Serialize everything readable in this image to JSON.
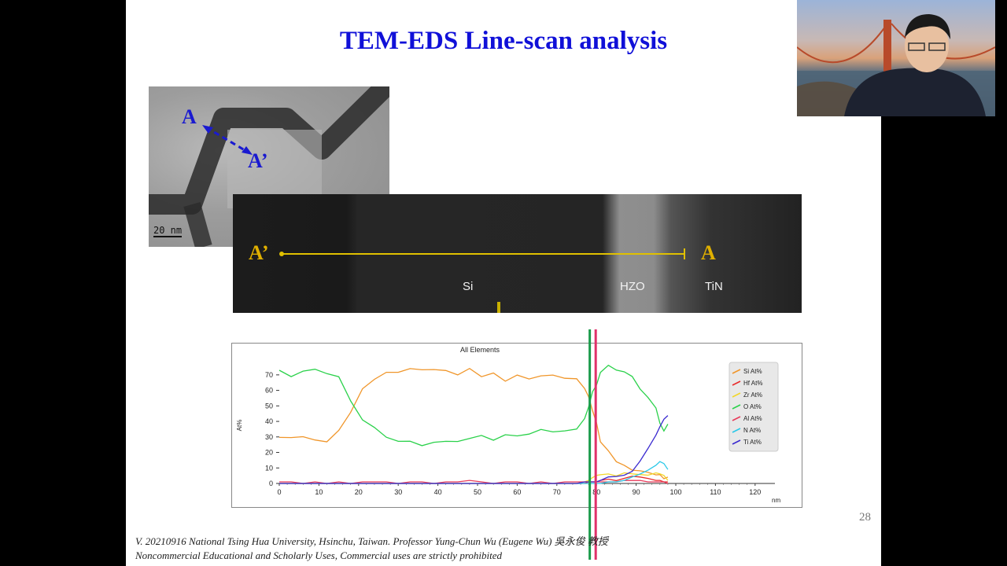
{
  "slide": {
    "title": "TEM-EDS Line-scan analysis",
    "page_number": "28",
    "footer_line1": "V. 20210916 National Tsing Hua University, Hsinchu, Taiwan. Professor Yung-Chun Wu (Eugene Wu) 吳永俊 教授",
    "footer_line2": "Noncommercial Educational and Scholarly Uses, Commercial uses are strictly prohibited"
  },
  "tem_image": {
    "point_a": "A",
    "point_a_prime": "A’",
    "scale_bar": "20 nm",
    "arrow_color": "#1a1ad0"
  },
  "stem_strip": {
    "point_a_prime": "A’",
    "point_a": "A",
    "layer_si": "Si",
    "layer_hzo": "HZO",
    "layer_tin": "TiN",
    "scan_line_color": "#e0c000"
  },
  "chart_data": {
    "type": "line",
    "title": "All Elements",
    "xlabel": "nm",
    "ylabel": "At%",
    "xlim": [
      0,
      125
    ],
    "ylim": [
      0,
      75
    ],
    "xticks": [
      0,
      10,
      20,
      30,
      40,
      50,
      60,
      70,
      80,
      90,
      100,
      110,
      120
    ],
    "yticks": [
      0,
      10,
      20,
      30,
      40,
      50,
      60,
      70
    ],
    "legend_position": "top-right",
    "grid": false,
    "vertical_markers": [
      {
        "x": 78.5,
        "color": "#1a9a4a"
      },
      {
        "x": 80,
        "color": "#e0306a"
      }
    ],
    "x": [
      0,
      3,
      6,
      9,
      12,
      15,
      18,
      21,
      24,
      27,
      30,
      33,
      36,
      39,
      42,
      45,
      48,
      51,
      54,
      57,
      60,
      63,
      66,
      69,
      72,
      75,
      77,
      78,
      79,
      80,
      81,
      83,
      85,
      87,
      89,
      91,
      93,
      95,
      96,
      97,
      98
    ],
    "series": [
      {
        "name": "Si At%",
        "color": "#f0962a",
        "values": [
          30,
          29,
          31,
          27,
          28,
          33,
          47,
          60,
          68,
          71,
          72,
          74,
          73,
          74,
          72,
          71,
          73,
          70,
          70,
          67,
          69,
          68,
          69,
          70,
          68,
          67,
          62,
          55,
          48,
          38,
          28,
          20,
          15,
          11,
          9,
          8,
          7,
          6,
          5,
          4,
          3
        ]
      },
      {
        "name": "Hf At%",
        "color": "#e82a2a",
        "values": [
          0,
          0,
          0,
          0,
          0,
          0,
          0,
          0,
          0,
          0,
          0,
          0,
          0,
          0,
          0,
          0,
          0,
          0,
          0,
          0,
          0,
          0,
          0,
          0,
          0,
          0,
          0,
          1,
          1,
          1,
          2,
          3,
          3,
          4,
          4,
          3,
          3,
          2,
          2,
          1,
          1
        ]
      },
      {
        "name": "Zr At%",
        "color": "#f2d62a",
        "values": [
          0,
          0,
          0,
          0,
          0,
          0,
          0,
          0,
          0,
          0,
          0,
          0,
          0,
          0,
          0,
          0,
          0,
          0,
          0,
          0,
          0,
          0,
          0,
          0,
          0,
          0,
          1,
          2,
          3,
          5,
          6,
          7,
          6,
          8,
          7,
          6,
          5,
          6,
          5,
          4,
          2
        ]
      },
      {
        "name": "O At%",
        "color": "#2ad14a",
        "values": [
          72,
          70,
          72,
          73,
          72,
          68,
          53,
          42,
          35,
          30,
          28,
          26,
          25,
          27,
          26,
          28,
          29,
          30,
          29,
          31,
          30,
          33,
          34,
          33,
          35,
          34,
          42,
          50,
          58,
          64,
          72,
          75,
          74,
          72,
          68,
          62,
          55,
          48,
          40,
          33,
          38
        ]
      },
      {
        "name": "Al At%",
        "color": "#e83a5a",
        "values": [
          1,
          1,
          0,
          1,
          0,
          1,
          0,
          1,
          1,
          1,
          0,
          1,
          1,
          0,
          1,
          1,
          2,
          1,
          0,
          1,
          1,
          0,
          1,
          0,
          1,
          1,
          1,
          1,
          1,
          1,
          1,
          1,
          1,
          2,
          3,
          2,
          1,
          1,
          1,
          1,
          0
        ]
      },
      {
        "name": "N At%",
        "color": "#2ac8e8",
        "values": [
          0,
          0,
          0,
          0,
          0,
          0,
          0,
          0,
          0,
          0,
          0,
          0,
          0,
          0,
          0,
          0,
          0,
          0,
          0,
          0,
          0,
          0,
          0,
          0,
          0,
          0,
          0,
          0,
          0,
          0,
          0,
          1,
          1,
          2,
          3,
          5,
          8,
          12,
          15,
          14,
          10
        ]
      },
      {
        "name": "Ti At%",
        "color": "#3a2ad0",
        "values": [
          0,
          0,
          0,
          0,
          0,
          0,
          0,
          0,
          0,
          0,
          0,
          0,
          0,
          0,
          0,
          0,
          0,
          0,
          0,
          0,
          0,
          0,
          0,
          0,
          0,
          0,
          1,
          1,
          1,
          1,
          2,
          3,
          4,
          6,
          9,
          15,
          22,
          30,
          36,
          42,
          45
        ]
      }
    ]
  }
}
